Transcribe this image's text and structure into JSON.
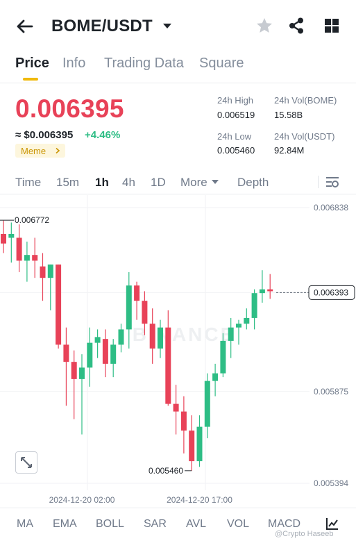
{
  "header": {
    "pair": "BOME/USDT",
    "icons": [
      "back-arrow-icon",
      "caret-down-icon",
      "star-icon",
      "share-icon",
      "grid-icon"
    ]
  },
  "tabs": [
    {
      "label": "Price",
      "active": true
    },
    {
      "label": "Info",
      "active": false
    },
    {
      "label": "Trading Data",
      "active": false
    },
    {
      "label": "Square",
      "active": false
    }
  ],
  "ticker": {
    "price": "0.006395",
    "fiat": "≈ $0.006395",
    "change": "+4.46%",
    "tag": "Meme",
    "high_label": "24h High",
    "high_value": "0.006519",
    "low_label": "24h Low",
    "low_value": "0.005460",
    "vol_base_label": "24h Vol(BOME)",
    "vol_base_value": "15.58B",
    "vol_quote_label": "24h Vol(USDT)",
    "vol_quote_value": "92.84M"
  },
  "intervals": [
    {
      "label": "Time",
      "active": false
    },
    {
      "label": "15m",
      "active": false
    },
    {
      "label": "1h",
      "active": true
    },
    {
      "label": "4h",
      "active": false
    },
    {
      "label": "1D",
      "active": false
    },
    {
      "label": "More",
      "active": false
    },
    {
      "label": "Depth",
      "active": false
    }
  ],
  "colors": {
    "up": "#2ebd85",
    "down": "#e84258",
    "accent": "#f0b90b"
  },
  "chart_data": {
    "type": "candlestick",
    "y_ticks": [
      "0.006838",
      "0.006393",
      "0.005875",
      "0.005394"
    ],
    "y_tick_values": [
      0.006838,
      0.006393,
      0.005875,
      0.005394
    ],
    "ylim": [
      0.005394,
      0.006838
    ],
    "x_ticks": [
      "2024-12-20 02:00",
      "2024-12-20 17:00"
    ],
    "x_tick_index": [
      10,
      25
    ],
    "current_price_label": "0.006393",
    "current_price": 0.006393,
    "high_annotation": "0.006772",
    "high_value": 0.006772,
    "low_annotation": "0.005460",
    "low_value": 0.00546,
    "watermark": "BINANCE",
    "candles": [
      {
        "o": 0.0067,
        "h": 0.00677,
        "l": 0.0066,
        "c": 0.00665
      },
      {
        "o": 0.00668,
        "h": 0.00676,
        "l": 0.00655,
        "c": 0.0067
      },
      {
        "o": 0.00668,
        "h": 0.00675,
        "l": 0.0065,
        "c": 0.00656
      },
      {
        "o": 0.00656,
        "h": 0.00666,
        "l": 0.00645,
        "c": 0.00659
      },
      {
        "o": 0.00659,
        "h": 0.00668,
        "l": 0.00647,
        "c": 0.00656
      },
      {
        "o": 0.00653,
        "h": 0.0066,
        "l": 0.00635,
        "c": 0.00647
      },
      {
        "o": 0.00647,
        "h": 0.00654,
        "l": 0.0063,
        "c": 0.00654
      },
      {
        "o": 0.00654,
        "h": 0.00654,
        "l": 0.0061,
        "c": 0.00612
      },
      {
        "o": 0.00612,
        "h": 0.00621,
        "l": 0.0058,
        "c": 0.00603
      },
      {
        "o": 0.00603,
        "h": 0.00609,
        "l": 0.00573,
        "c": 0.00594
      },
      {
        "o": 0.00594,
        "h": 0.00607,
        "l": 0.00565,
        "c": 0.006
      },
      {
        "o": 0.006,
        "h": 0.00621,
        "l": 0.0059,
        "c": 0.00613
      },
      {
        "o": 0.00613,
        "h": 0.0062,
        "l": 0.00605,
        "c": 0.00616
      },
      {
        "o": 0.00615,
        "h": 0.0062,
        "l": 0.00595,
        "c": 0.00602
      },
      {
        "o": 0.00602,
        "h": 0.00615,
        "l": 0.00595,
        "c": 0.00612
      },
      {
        "o": 0.00612,
        "h": 0.00623,
        "l": 0.00608,
        "c": 0.0062
      },
      {
        "o": 0.0062,
        "h": 0.0065,
        "l": 0.0061,
        "c": 0.00643
      },
      {
        "o": 0.00643,
        "h": 0.00645,
        "l": 0.00625,
        "c": 0.00635
      },
      {
        "o": 0.00635,
        "h": 0.0064,
        "l": 0.00617,
        "c": 0.00623
      },
      {
        "o": 0.00623,
        "h": 0.00631,
        "l": 0.00602,
        "c": 0.0061
      },
      {
        "o": 0.0061,
        "h": 0.00625,
        "l": 0.00605,
        "c": 0.00621
      },
      {
        "o": 0.00621,
        "h": 0.0063,
        "l": 0.0058,
        "c": 0.00581
      },
      {
        "o": 0.00581,
        "h": 0.00591,
        "l": 0.00565,
        "c": 0.00577
      },
      {
        "o": 0.00577,
        "h": 0.00585,
        "l": 0.00555,
        "c": 0.00567
      },
      {
        "o": 0.00567,
        "h": 0.00575,
        "l": 0.00546,
        "c": 0.00551
      },
      {
        "o": 0.00551,
        "h": 0.00575,
        "l": 0.00548,
        "c": 0.00569
      },
      {
        "o": 0.00569,
        "h": 0.00597,
        "l": 0.00563,
        "c": 0.00593
      },
      {
        "o": 0.00593,
        "h": 0.00602,
        "l": 0.00585,
        "c": 0.00597
      },
      {
        "o": 0.00597,
        "h": 0.00618,
        "l": 0.00595,
        "c": 0.00614
      },
      {
        "o": 0.00614,
        "h": 0.00626,
        "l": 0.00605,
        "c": 0.00621
      },
      {
        "o": 0.00621,
        "h": 0.00625,
        "l": 0.00612,
        "c": 0.00623
      },
      {
        "o": 0.00623,
        "h": 0.00631,
        "l": 0.0062,
        "c": 0.00626
      },
      {
        "o": 0.00626,
        "h": 0.00641,
        "l": 0.0062,
        "c": 0.00639
      },
      {
        "o": 0.00639,
        "h": 0.00651,
        "l": 0.00634,
        "c": 0.00641
      },
      {
        "o": 0.00641,
        "h": 0.00649,
        "l": 0.00636,
        "c": 0.0064
      }
    ]
  },
  "indicators": [
    "MA",
    "EMA",
    "BOLL",
    "SAR",
    "AVL",
    "VOL",
    "MACD"
  ],
  "credit": "@Crypto Haseeb"
}
